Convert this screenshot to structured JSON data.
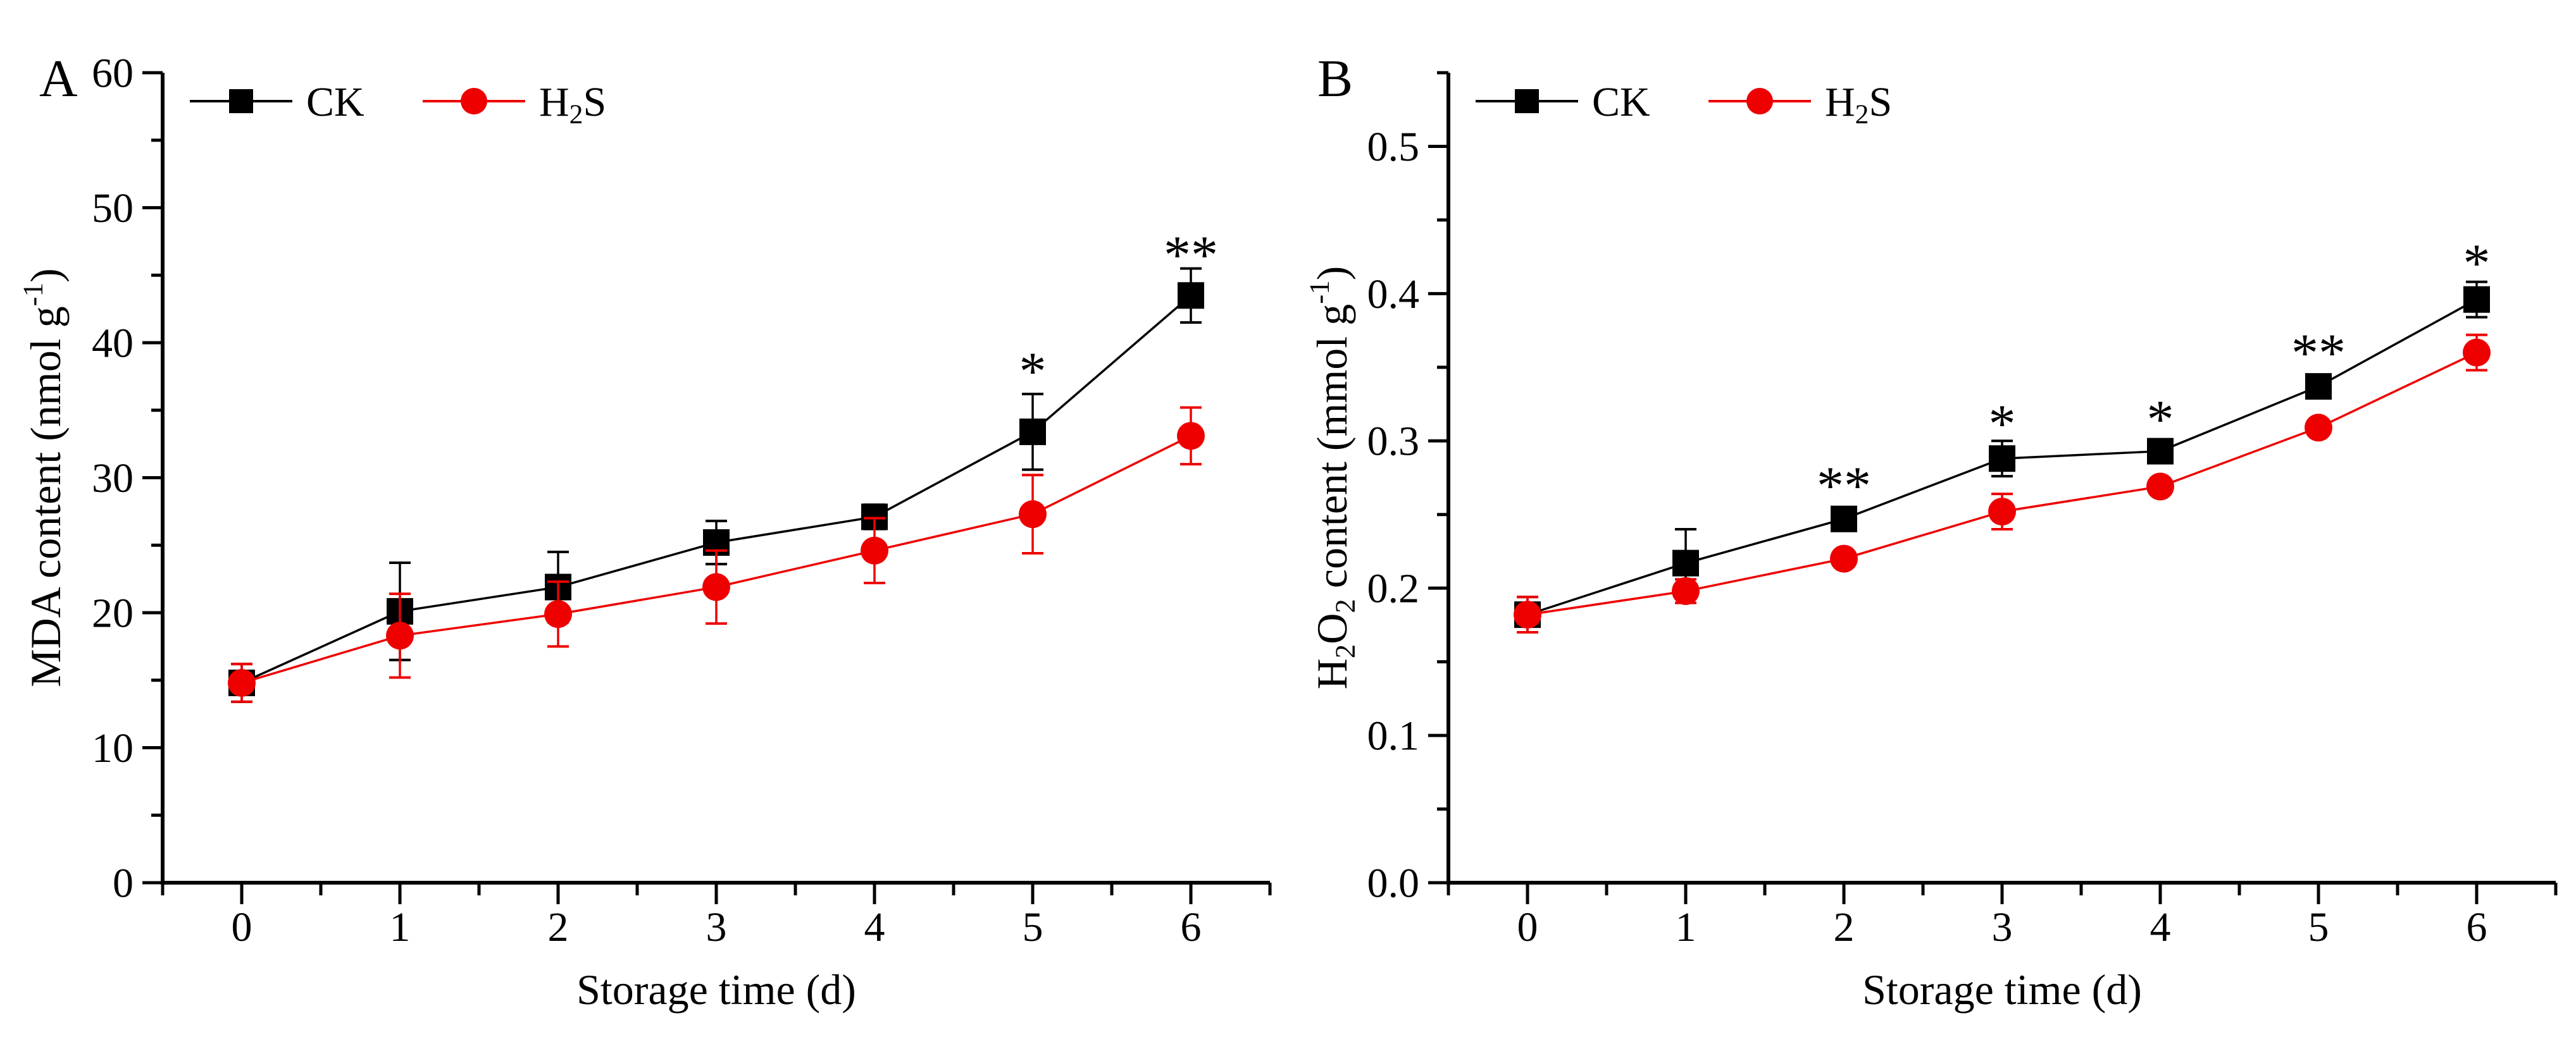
{
  "figure": {
    "background": "#ffffff",
    "colors": {
      "ck": "#000000",
      "h2s": "#ee0000"
    }
  },
  "chart_data": [
    {
      "panel_label": "A",
      "type": "line",
      "xlabel": "Storage time (d)",
      "ylabel": "MDA content (nmol g-1)",
      "ylabel_parts": [
        [
          "MDA content (nmol g"
        ],
        [
          "-1",
          "sup"
        ],
        [
          ")"
        ]
      ],
      "x": [
        0,
        1,
        2,
        3,
        4,
        5,
        6
      ],
      "x_tick_labels": [
        "0",
        "1",
        "2",
        "3",
        "4",
        "5",
        "6"
      ],
      "xlim": [
        -0.5,
        6.5
      ],
      "ylim": [
        0,
        60
      ],
      "y_axis_top": 60,
      "y_major_ticks": [
        0,
        10,
        20,
        30,
        40,
        50,
        60
      ],
      "y_tick_labels": [
        "0",
        "10",
        "20",
        "30",
        "40",
        "50",
        "60"
      ],
      "y_minor_step": 5,
      "x_minor_step": 0.5,
      "legend_position": "top-left-inside",
      "series": [
        {
          "name": "CK",
          "name_parts": [
            [
              "CK"
            ]
          ],
          "color": "#000000",
          "marker": "square",
          "values": [
            14.8,
            20.1,
            21.9,
            25.2,
            27.1,
            33.4,
            43.5
          ],
          "errors": [
            1.4,
            3.6,
            2.6,
            1.6,
            0.9,
            2.8,
            2.0
          ]
        },
        {
          "name": "H2S",
          "name_parts": [
            [
              "H"
            ],
            [
              "2",
              "sub"
            ],
            [
              "S"
            ]
          ],
          "color": "#ee0000",
          "marker": "circle",
          "values": [
            14.8,
            18.3,
            19.9,
            21.9,
            24.6,
            27.3,
            33.1
          ],
          "errors": [
            1.4,
            3.1,
            2.4,
            2.7,
            2.4,
            2.9,
            2.1
          ]
        }
      ],
      "annotations": [
        {
          "x": 5,
          "y": 38.7,
          "text": "*"
        },
        {
          "x": 6,
          "y": 47.3,
          "text": "**"
        }
      ]
    },
    {
      "panel_label": "B",
      "type": "line",
      "xlabel": "Storage time (d)",
      "ylabel": "H2O2 content (mmol g-1)",
      "ylabel_parts": [
        [
          "H"
        ],
        [
          "2",
          "sub"
        ],
        [
          "O"
        ],
        [
          "2",
          "sub"
        ],
        [
          " content (mmol g"
        ],
        [
          "-1",
          "sup"
        ],
        [
          ")"
        ]
      ],
      "x": [
        0,
        1,
        2,
        3,
        4,
        5,
        6
      ],
      "x_tick_labels": [
        "0",
        "1",
        "2",
        "3",
        "4",
        "5",
        "6"
      ],
      "xlim": [
        -0.5,
        6.5
      ],
      "ylim": [
        0,
        0.55
      ],
      "y_axis_top": 0.55,
      "y_major_ticks": [
        0,
        0.1,
        0.2,
        0.3,
        0.4,
        0.5
      ],
      "y_tick_labels": [
        "0.0",
        "0.1",
        "0.2",
        "0.3",
        "0.4",
        "0.5"
      ],
      "y_minor_step": 0.05,
      "x_minor_step": 0.5,
      "legend_position": "top-left-inside",
      "series": [
        {
          "name": "CK",
          "name_parts": [
            [
              "CK"
            ]
          ],
          "color": "#000000",
          "marker": "square",
          "values": [
            0.182,
            0.217,
            0.247,
            0.288,
            0.293,
            0.337,
            0.396
          ],
          "errors": [
            0.012,
            0.023,
            0.005,
            0.012,
            0.008,
            0.008,
            0.012
          ]
        },
        {
          "name": "H2S",
          "name_parts": [
            [
              "H"
            ],
            [
              "2",
              "sub"
            ],
            [
              "S"
            ]
          ],
          "color": "#ee0000",
          "marker": "circle",
          "values": [
            0.182,
            0.198,
            0.22,
            0.252,
            0.269,
            0.309,
            0.36
          ],
          "errors": [
            0.012,
            0.008,
            0.004,
            0.012,
            0.004,
            0.004,
            0.012
          ]
        }
      ],
      "annotations": [
        {
          "x": 2,
          "y": 0.277,
          "text": "**"
        },
        {
          "x": 3,
          "y": 0.319,
          "text": "*"
        },
        {
          "x": 4,
          "y": 0.322,
          "text": "*"
        },
        {
          "x": 5,
          "y": 0.367,
          "text": "**"
        },
        {
          "x": 6,
          "y": 0.428,
          "text": "*"
        }
      ]
    }
  ]
}
